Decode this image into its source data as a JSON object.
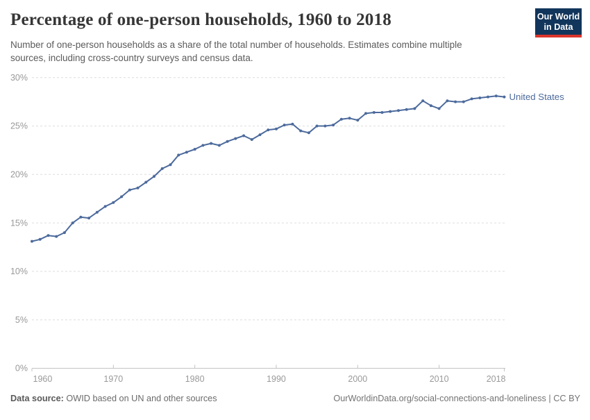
{
  "header": {
    "title": "Percentage of one-person households, 1960 to 2018",
    "subtitle_lines": [
      "Number of one-person households as a share of the total number of households. Estimates combine multiple",
      "sources, including cross-country surveys and census data."
    ],
    "logo": {
      "line1": "Our World",
      "line2": "in Data",
      "bg_color": "#12355b",
      "bar_color": "#dc352c",
      "text_color": "#ffffff"
    }
  },
  "chart_data": {
    "type": "line",
    "title": "Percentage of one-person households, 1960 to 2018",
    "xlabel": "",
    "ylabel": "",
    "xlim": [
      1960,
      2018
    ],
    "ylim": [
      0,
      30
    ],
    "grid": "horizontal-dashed",
    "legend_position": "right-of-line-end",
    "colors": {
      "line": "#4c6a9c",
      "grid": "#dddddd",
      "axis": "#c3c3c3",
      "tick_label": "#999999"
    },
    "x_ticks": [
      {
        "value": 1960,
        "label": "1960",
        "anchor": "start"
      },
      {
        "value": 1970,
        "label": "1970",
        "anchor": "middle"
      },
      {
        "value": 1980,
        "label": "1980",
        "anchor": "middle"
      },
      {
        "value": 1990,
        "label": "1990",
        "anchor": "middle"
      },
      {
        "value": 2000,
        "label": "2000",
        "anchor": "middle"
      },
      {
        "value": 2010,
        "label": "2010",
        "anchor": "middle"
      },
      {
        "value": 2018,
        "label": "2018",
        "anchor": "end"
      }
    ],
    "y_ticks": [
      {
        "value": 0,
        "label": "0%"
      },
      {
        "value": 5,
        "label": "5%"
      },
      {
        "value": 10,
        "label": "10%"
      },
      {
        "value": 15,
        "label": "15%"
      },
      {
        "value": 20,
        "label": "20%"
      },
      {
        "value": 25,
        "label": "25%"
      },
      {
        "value": 30,
        "label": "30%"
      }
    ],
    "series": [
      {
        "name": "United States",
        "color": "#4c6a9c",
        "x": [
          1960,
          1961,
          1962,
          1963,
          1964,
          1965,
          1966,
          1967,
          1968,
          1969,
          1970,
          1971,
          1972,
          1973,
          1974,
          1975,
          1976,
          1977,
          1978,
          1979,
          1980,
          1981,
          1982,
          1983,
          1984,
          1985,
          1986,
          1987,
          1988,
          1989,
          1990,
          1991,
          1992,
          1993,
          1994,
          1995,
          1996,
          1997,
          1998,
          1999,
          2000,
          2001,
          2002,
          2003,
          2004,
          2005,
          2006,
          2007,
          2008,
          2009,
          2010,
          2011,
          2012,
          2013,
          2014,
          2015,
          2016,
          2017,
          2018
        ],
        "values": [
          13.1,
          13.3,
          13.7,
          13.6,
          14.0,
          15.0,
          15.6,
          15.5,
          16.1,
          16.7,
          17.1,
          17.7,
          18.4,
          18.6,
          19.2,
          19.8,
          20.6,
          21.0,
          22.0,
          22.3,
          22.6,
          23.0,
          23.2,
          23.0,
          23.4,
          23.7,
          24.0,
          23.6,
          24.1,
          24.6,
          24.7,
          25.1,
          25.2,
          24.5,
          24.3,
          25.0,
          25.0,
          25.1,
          25.7,
          25.8,
          25.6,
          26.3,
          26.4,
          26.4,
          26.5,
          26.6,
          26.7,
          26.8,
          27.6,
          27.1,
          26.8,
          27.6,
          27.5,
          27.5,
          27.8,
          27.9,
          28.0,
          28.1,
          28.0
        ]
      }
    ]
  },
  "footer": {
    "source_bold": "Data source:",
    "source_rest": " OWID based on UN and other sources",
    "license": "OurWorldinData.org/social-connections-and-loneliness | CC BY"
  }
}
